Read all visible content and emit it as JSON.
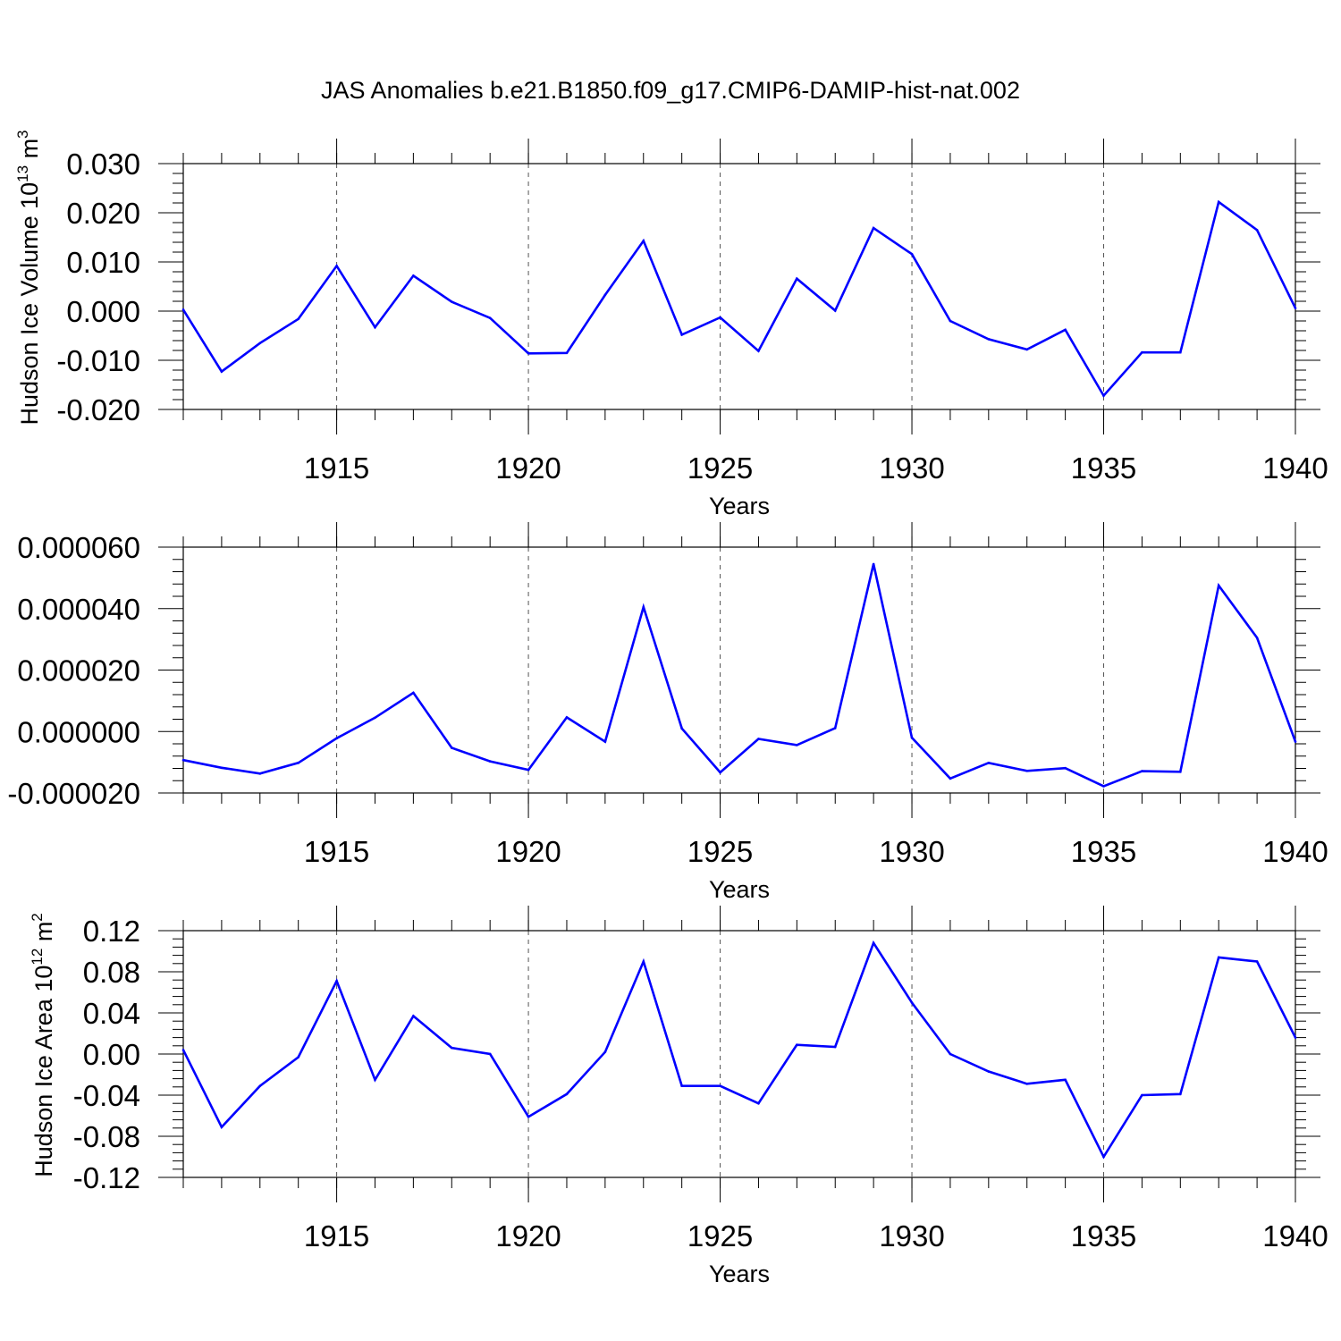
{
  "figure": {
    "title": "JAS Anomalies b.e21.B1850.f09_g17.CMIP6-DAMIP-hist-nat.002"
  },
  "style": {
    "line_color": "#0000ff",
    "grid_color": "#555555"
  },
  "chart_data": [
    {
      "type": "line",
      "ylabel_main": "Hudson Ice Volume 10",
      "ylabel_sup": "13",
      "ylabel_tail": " m",
      "ylabel_sup2": "3",
      "xlabel": "Years",
      "xlim": [
        1911,
        1940
      ],
      "ylim": [
        -0.02,
        0.03
      ],
      "xticks": [
        "1915",
        "1920",
        "1925",
        "1930",
        "1935",
        "1940"
      ],
      "yticks": [
        "-0.020",
        "-0.010",
        "0.000",
        "0.010",
        "0.020",
        "0.030"
      ],
      "grid": "vertical dashed at major x ticks",
      "x": [
        1911,
        1912,
        1913,
        1914,
        1915,
        1916,
        1917,
        1918,
        1919,
        1920,
        1921,
        1922,
        1923,
        1924,
        1925,
        1926,
        1927,
        1928,
        1929,
        1930,
        1931,
        1932,
        1933,
        1934,
        1935,
        1936,
        1937,
        1938,
        1939,
        1940
      ],
      "y": [
        0.0003,
        -0.0123,
        -0.0065,
        -0.0016,
        0.0092,
        -0.0033,
        0.0072,
        0.0019,
        -0.0014,
        -0.0086,
        -0.0085,
        0.0033,
        0.0143,
        -0.0048,
        -0.0013,
        -0.0081,
        0.0066,
        0.0001,
        0.0169,
        0.0116,
        -0.002,
        -0.0057,
        -0.0078,
        -0.0038,
        -0.0172,
        -0.0084,
        -0.0084,
        0.0222,
        0.0165,
        0.0006
      ]
    },
    {
      "type": "line",
      "ylabel_main": "",
      "ylabel_sup": "",
      "ylabel_tail": "",
      "ylabel_sup2": "",
      "xlabel": "Years",
      "xlim": [
        1911,
        1940
      ],
      "ylim": [
        -2e-05,
        6e-05
      ],
      "xticks": [
        "1915",
        "1920",
        "1925",
        "1930",
        "1935",
        "1940"
      ],
      "yticks": [
        "-0.000020",
        "0.000000",
        "0.000020",
        "0.000040",
        "0.000060"
      ],
      "grid": "vertical dashed at major x ticks",
      "x": [
        1911,
        1912,
        1913,
        1914,
        1915,
        1916,
        1917,
        1918,
        1919,
        1920,
        1921,
        1922,
        1923,
        1924,
        1925,
        1926,
        1927,
        1928,
        1929,
        1930,
        1931,
        1932,
        1933,
        1934,
        1935,
        1936,
        1937,
        1938,
        1939,
        1940
      ],
      "y": [
        -9.3e-06,
        -1.18e-05,
        -1.37e-05,
        -1.02e-05,
        -2.2e-06,
        4.5e-06,
        1.26e-05,
        -5.3e-06,
        -9.7e-06,
        -1.25e-05,
        4.6e-06,
        -3.3e-06,
        4.05e-05,
        1e-06,
        -1.33e-05,
        -2.4e-06,
        -4.4e-06,
        1.1e-06,
        5.45e-05,
        -2e-06,
        -1.53e-05,
        -1.02e-05,
        -1.28e-05,
        -1.19e-05,
        -1.78e-05,
        -1.29e-05,
        -1.31e-05,
        4.75e-05,
        3.05e-05,
        -3.3e-06
      ]
    },
    {
      "type": "line",
      "ylabel_main": "Hudson Ice Area 10",
      "ylabel_sup": "12",
      "ylabel_tail": " m",
      "ylabel_sup2": "2",
      "xlabel": "Years",
      "xlim": [
        1911,
        1940
      ],
      "ylim": [
        -0.12,
        0.12
      ],
      "xticks": [
        "1915",
        "1920",
        "1925",
        "1930",
        "1935",
        "1940"
      ],
      "yticks": [
        "-0.12",
        "-0.08",
        "-0.04",
        "0.00",
        "0.04",
        "0.08",
        "0.12"
      ],
      "grid": "vertical dashed at major x ticks",
      "x": [
        1911,
        1912,
        1913,
        1914,
        1915,
        1916,
        1917,
        1918,
        1919,
        1920,
        1921,
        1922,
        1923,
        1924,
        1925,
        1926,
        1927,
        1928,
        1929,
        1930,
        1931,
        1932,
        1933,
        1934,
        1935,
        1936,
        1937,
        1938,
        1939,
        1940
      ],
      "y": [
        0.004,
        -0.071,
        -0.031,
        -0.003,
        0.071,
        -0.025,
        0.037,
        0.006,
        0.0,
        -0.061,
        -0.039,
        0.002,
        0.09,
        -0.031,
        -0.031,
        -0.048,
        0.009,
        0.007,
        0.108,
        0.05,
        0.0,
        -0.017,
        -0.029,
        -0.025,
        -0.1,
        -0.04,
        -0.039,
        0.094,
        0.09,
        0.016
      ]
    }
  ]
}
